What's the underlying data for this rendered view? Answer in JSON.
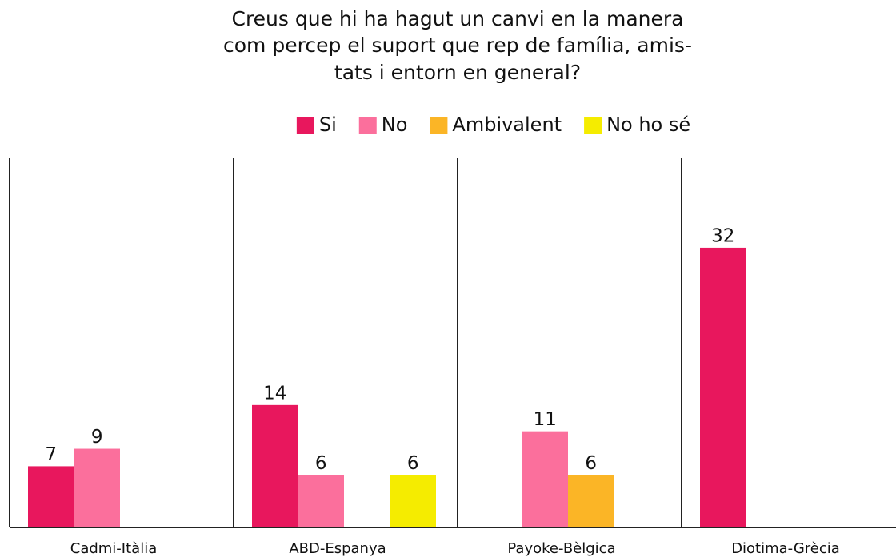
{
  "chart_data": {
    "type": "bar",
    "title": [
      "Creus que hi ha hagut un canvi en la manera",
      "com percep el suport que rep de família, amis-",
      "tats i entorn en general?"
    ],
    "categories": [
      "Cadmi-Itàlia",
      "ABD-Espanya",
      "Payoke-Bèlgica",
      "Diotima-Grècia"
    ],
    "series": [
      {
        "name": "Si",
        "color": "#e8175d",
        "values": [
          7,
          14,
          null,
          32
        ]
      },
      {
        "name": "No",
        "color": "#fb6f9c",
        "values": [
          9,
          6,
          11,
          null
        ]
      },
      {
        "name": "Ambivalent",
        "color": "#fbb526",
        "values": [
          null,
          null,
          6,
          null
        ]
      },
      {
        "name": "No ho sé",
        "color": "#f5ec00",
        "values": [
          null,
          6,
          null,
          null
        ]
      }
    ],
    "legend": "top"
  }
}
